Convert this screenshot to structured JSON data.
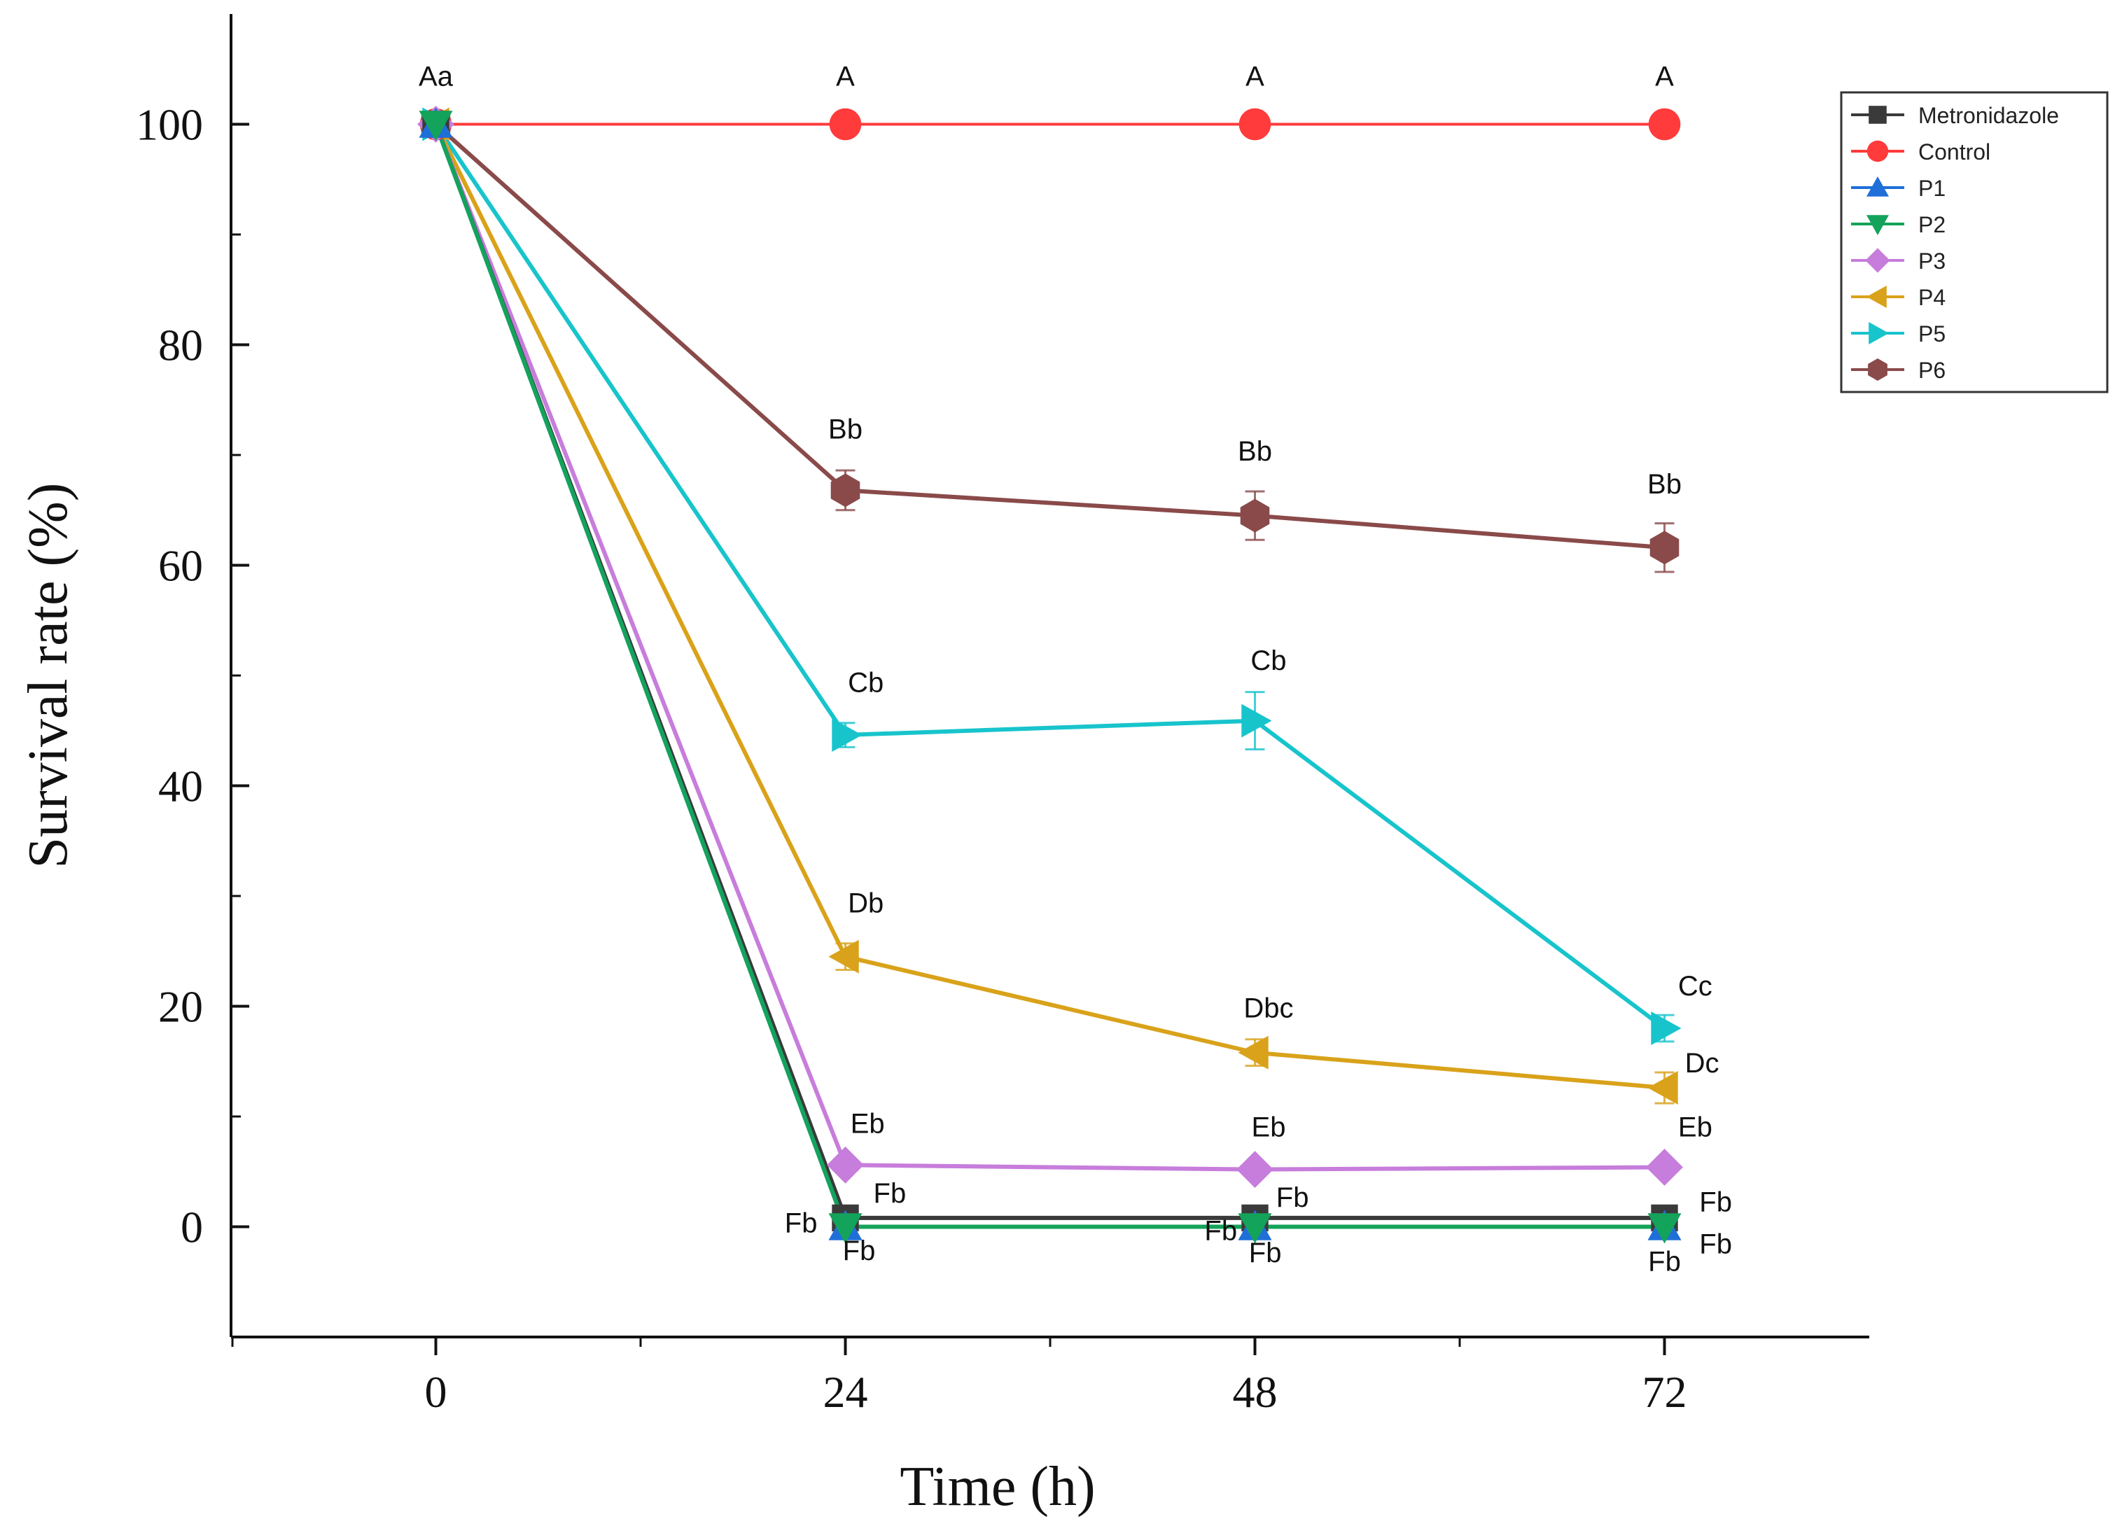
{
  "chart_data": {
    "type": "line",
    "title": "",
    "xlabel": "Time (h)",
    "ylabel": "Survival rate (%)",
    "x": [
      0,
      24,
      48,
      72
    ],
    "xticks": [
      "0",
      "24",
      "48",
      "72"
    ],
    "yticks": [
      "0",
      "20",
      "40",
      "60",
      "80",
      "100"
    ],
    "xlim": [
      -12,
      84
    ],
    "ylim": [
      -10,
      110
    ],
    "legend_position": "top-right",
    "series": [
      {
        "name": "Metronidazole",
        "values": [
          100,
          0.8,
          0.8,
          0.8
        ],
        "errors": [
          0,
          0,
          0,
          0
        ],
        "color": "#3a3a3a",
        "marker": "square"
      },
      {
        "name": "Control",
        "values": [
          100,
          100,
          100,
          100
        ],
        "errors": [
          0,
          0,
          0,
          0
        ],
        "color": "#ff3b3b",
        "marker": "circle"
      },
      {
        "name": "P1",
        "values": [
          100,
          0,
          0,
          0
        ],
        "errors": [
          0,
          0,
          0,
          0
        ],
        "color": "#1f6fd8",
        "marker": "triangle-up"
      },
      {
        "name": "P2",
        "values": [
          100,
          0,
          0,
          0
        ],
        "errors": [
          0,
          0,
          0,
          0
        ],
        "color": "#14a35a",
        "marker": "triangle-down"
      },
      {
        "name": "P3",
        "values": [
          100,
          5.6,
          5.2,
          5.4
        ],
        "errors": [
          0,
          0.6,
          0.6,
          0.6
        ],
        "color": "#c77ddb",
        "marker": "diamond"
      },
      {
        "name": "P4",
        "values": [
          100,
          24.5,
          15.8,
          12.6
        ],
        "errors": [
          0,
          1.2,
          1.2,
          1.4
        ],
        "color": "#d9a21a",
        "marker": "triangle-left"
      },
      {
        "name": "P5",
        "values": [
          100,
          44.6,
          45.9,
          18
        ],
        "errors": [
          0,
          1.1,
          2.6,
          1.2
        ],
        "color": "#18c4cc",
        "marker": "triangle-right"
      },
      {
        "name": "P6",
        "values": [
          100,
          66.8,
          64.5,
          61.6
        ],
        "errors": [
          0,
          1.8,
          2.2,
          2.2
        ],
        "color": "#8a4a4a",
        "marker": "hexagon"
      }
    ],
    "annotations": [
      {
        "text": "Aa",
        "x": 0,
        "y": 103.5,
        "dx": 0
      },
      {
        "text": "A",
        "x": 24,
        "y": 103.5,
        "dx": 0
      },
      {
        "text": "A",
        "x": 48,
        "y": 103.5,
        "dx": 0
      },
      {
        "text": "A",
        "x": 72,
        "y": 103.5,
        "dx": 0
      },
      {
        "text": "Bb",
        "x": 24,
        "y": 71.5,
        "dx": 0
      },
      {
        "text": "Bb",
        "x": 48,
        "y": 69.5,
        "dx": 0
      },
      {
        "text": "Bb",
        "x": 72,
        "y": 66.5,
        "dx": 0
      },
      {
        "text": "Cb",
        "x": 24,
        "y": 48.5,
        "dx": 1.2
      },
      {
        "text": "Cb",
        "x": 48,
        "y": 50.5,
        "dx": 0.8
      },
      {
        "text": "Cc",
        "x": 72,
        "y": 21.0,
        "dx": 1.8
      },
      {
        "text": "Db",
        "x": 24,
        "y": 28.5,
        "dx": 1.2
      },
      {
        "text": "Dbc",
        "x": 48,
        "y": 19.0,
        "dx": 0.8
      },
      {
        "text": "Dc",
        "x": 72,
        "y": 14.0,
        "dx": 2.2
      },
      {
        "text": "Eb",
        "x": 24,
        "y": 8.5,
        "dx": 1.3
      },
      {
        "text": "Eb",
        "x": 48,
        "y": 8.2,
        "dx": 0.8
      },
      {
        "text": "Eb",
        "x": 72,
        "y": 8.2,
        "dx": 1.8
      },
      {
        "text": "Fb",
        "x": 24,
        "y": 2.2,
        "dx": 2.6
      },
      {
        "text": "Fb",
        "x": 24,
        "y": -0.5,
        "dx": -2.6
      },
      {
        "text": "Fb",
        "x": 24,
        "y": -3.0,
        "dx": 0.8
      },
      {
        "text": "Fb",
        "x": 48,
        "y": 1.8,
        "dx": 2.2
      },
      {
        "text": "Fb",
        "x": 48,
        "y": -1.2,
        "dx": -2.0
      },
      {
        "text": "Fb",
        "x": 48,
        "y": -3.2,
        "dx": 0.6
      },
      {
        "text": "Fb",
        "x": 72,
        "y": 1.4,
        "dx": 3.0
      },
      {
        "text": "Fb",
        "x": 72,
        "y": -2.4,
        "dx": 3.0
      },
      {
        "text": "Fb",
        "x": 72,
        "y": -4.0,
        "dx": 0.0
      }
    ]
  }
}
